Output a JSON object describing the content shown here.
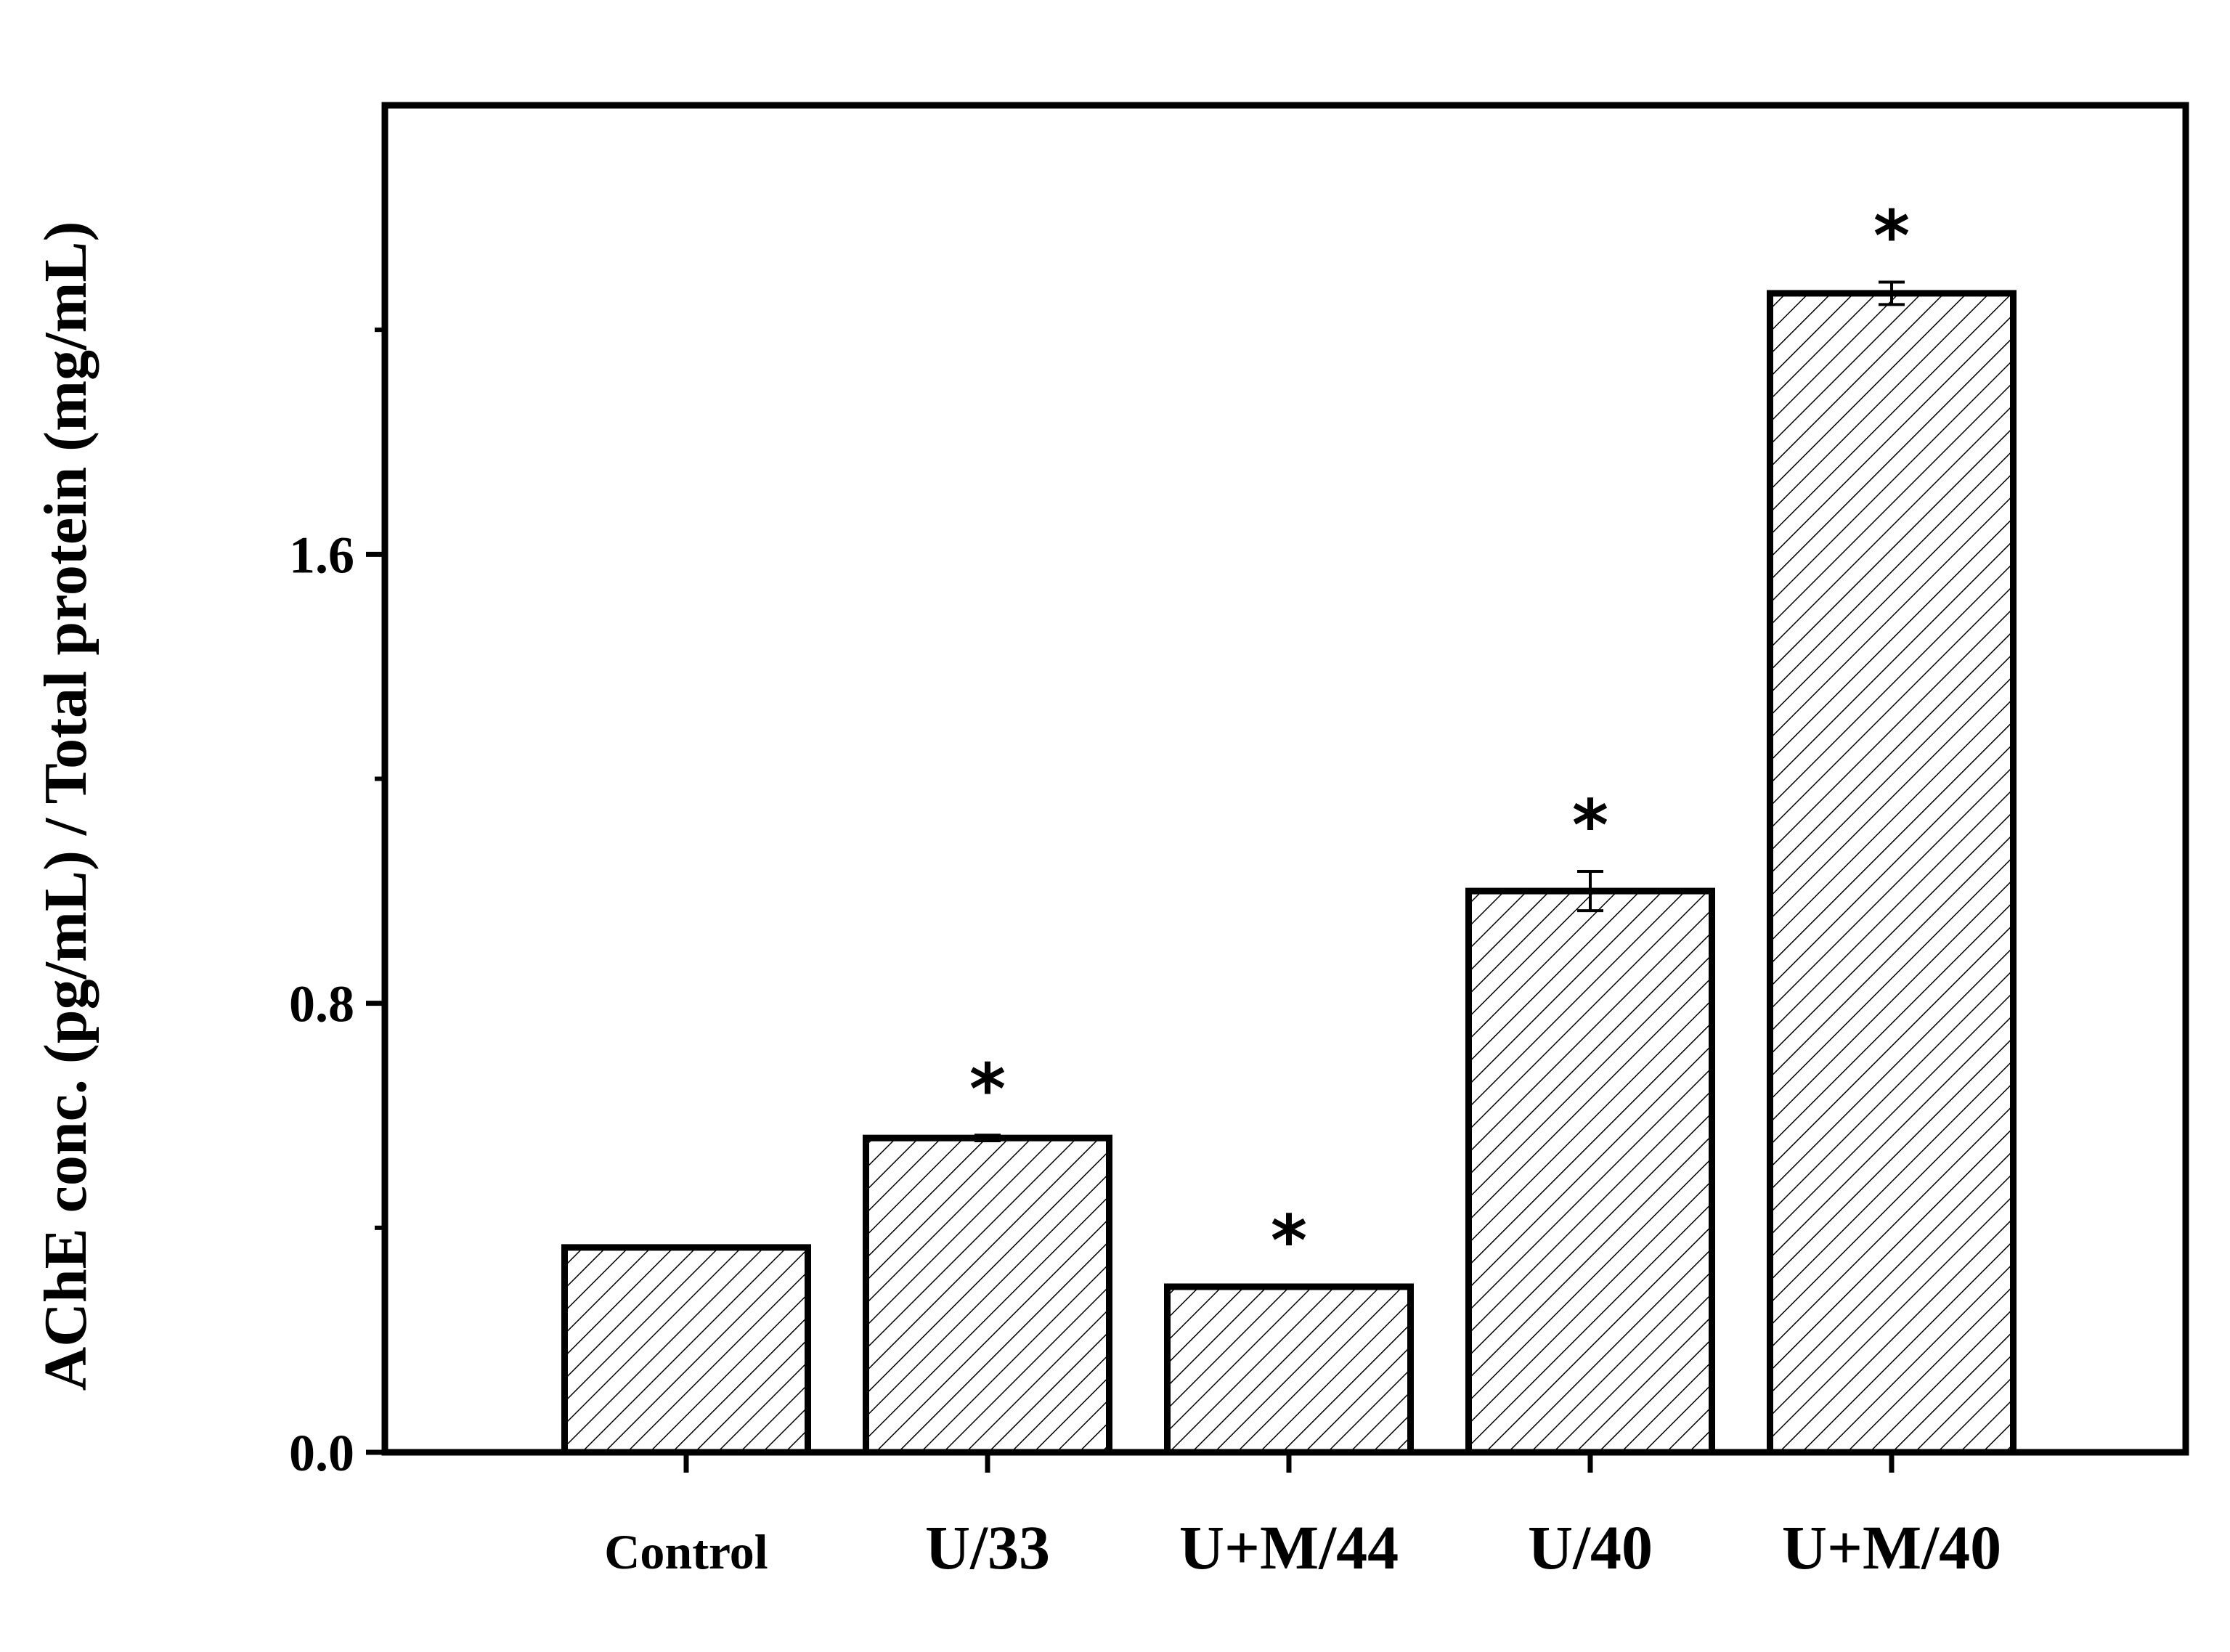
{
  "chart_data": {
    "type": "bar",
    "categories": [
      "Control",
      "U/33",
      "U+M/44",
      "U/40",
      "U+M/40"
    ],
    "values": [
      0.365,
      0.56,
      0.295,
      1.0,
      2.065
    ],
    "errors": [
      0.0,
      0.005,
      0.0,
      0.035,
      0.02
    ],
    "significance": [
      "",
      "*",
      "*",
      "*",
      "*"
    ],
    "ylabel": "AChE conc. (pg/mL) / Total protein (mg/mL)",
    "xlabel": "",
    "ylim": [
      0,
      2.4
    ],
    "yticks": [
      0.0,
      0.8,
      1.6
    ],
    "ytick_labels": [
      "0.0",
      "0.8",
      "1.6"
    ],
    "fill_pattern": "diagonal-hatch",
    "colors": {
      "bar_edge": "#000000",
      "hatch": "#000000",
      "background": "#ffffff"
    },
    "grid": false,
    "legend": "none"
  }
}
